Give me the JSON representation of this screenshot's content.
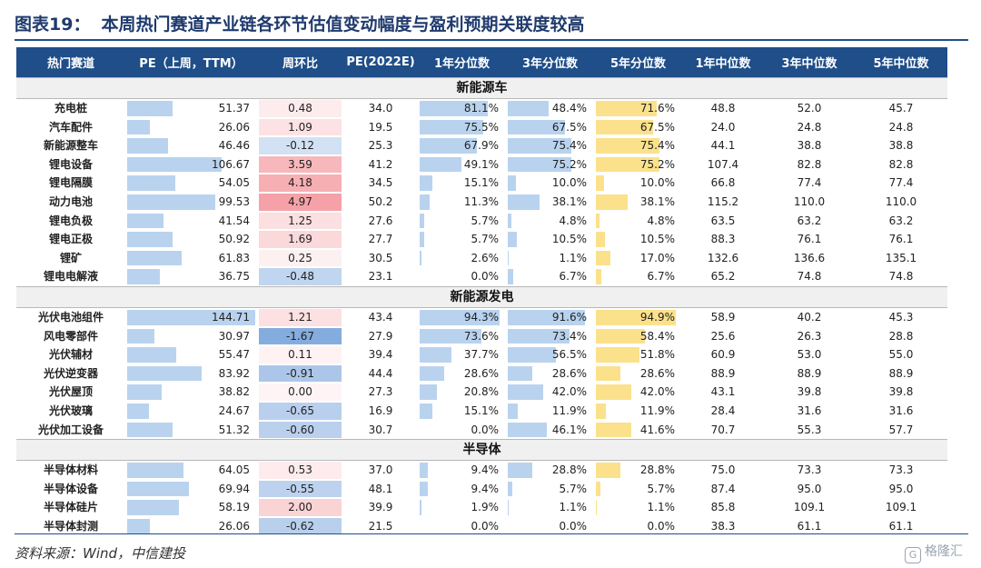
{
  "title": {
    "num": "图表19：",
    "text": "本周热门赛道产业链各环节估值变动幅度与盈利预期关联度较高"
  },
  "colors": {
    "header_bg": "#1f4e89",
    "bar_blue": "#b9d3ef",
    "bar_yellow": "#fbe18b",
    "pos": "#f5a6ab",
    "neg": "#8cb3e2"
  },
  "headers": [
    "热门赛道",
    "PE（上周，TTM）",
    "周环比",
    "PE(2022E)",
    "1年分位数",
    "3年分位数",
    "5年分位数",
    "1年中位数",
    "3年中位数",
    "5年中位数"
  ],
  "sections": [
    {
      "name": "新能源车",
      "rows": [
        {
          "name": "充电桩",
          "pe": "51.37",
          "chg": "0.48",
          "pe22": "34.0",
          "p1": "81.1%",
          "p3": "48.4%",
          "p5": "71.6%",
          "m1": "48.8",
          "m3": "52.0",
          "m5": "45.7"
        },
        {
          "name": "汽车配件",
          "pe": "26.06",
          "chg": "1.09",
          "pe22": "19.5",
          "p1": "75.5%",
          "p3": "67.5%",
          "p5": "67.5%",
          "m1": "24.0",
          "m3": "24.8",
          "m5": "24.8"
        },
        {
          "name": "新能源整车",
          "pe": "46.46",
          "chg": "-0.12",
          "pe22": "25.3",
          "p1": "67.9%",
          "p3": "75.4%",
          "p5": "75.4%",
          "m1": "44.1",
          "m3": "38.8",
          "m5": "38.8"
        },
        {
          "name": "锂电设备",
          "pe": "106.67",
          "chg": "3.59",
          "pe22": "41.2",
          "p1": "49.1%",
          "p3": "75.2%",
          "p5": "75.2%",
          "m1": "107.4",
          "m3": "82.8",
          "m5": "82.8"
        },
        {
          "name": "锂电隔膜",
          "pe": "54.05",
          "chg": "4.18",
          "pe22": "34.5",
          "p1": "15.1%",
          "p3": "10.0%",
          "p5": "10.0%",
          "m1": "66.8",
          "m3": "77.4",
          "m5": "77.4"
        },
        {
          "name": "动力电池",
          "pe": "99.53",
          "chg": "4.97",
          "pe22": "50.2",
          "p1": "11.3%",
          "p3": "38.1%",
          "p5": "38.1%",
          "m1": "115.2",
          "m3": "110.0",
          "m5": "110.0"
        },
        {
          "name": "锂电负极",
          "pe": "41.54",
          "chg": "1.25",
          "pe22": "27.6",
          "p1": "5.7%",
          "p3": "4.8%",
          "p5": "4.8%",
          "m1": "63.5",
          "m3": "63.2",
          "m5": "63.2"
        },
        {
          "name": "锂电正极",
          "pe": "50.92",
          "chg": "1.69",
          "pe22": "27.7",
          "p1": "5.7%",
          "p3": "10.5%",
          "p5": "10.5%",
          "m1": "88.3",
          "m3": "76.1",
          "m5": "76.1"
        },
        {
          "name": "锂矿",
          "pe": "61.83",
          "chg": "0.25",
          "pe22": "30.5",
          "p1": "2.6%",
          "p3": "1.1%",
          "p5": "17.0%",
          "m1": "132.6",
          "m3": "136.6",
          "m5": "135.1"
        },
        {
          "name": "锂电电解液",
          "pe": "36.75",
          "chg": "-0.48",
          "pe22": "23.1",
          "p1": "0.0%",
          "p3": "6.7%",
          "p5": "6.7%",
          "m1": "65.2",
          "m3": "74.8",
          "m5": "74.8"
        }
      ]
    },
    {
      "name": "新能源发电",
      "rows": [
        {
          "name": "光伏电池组件",
          "pe": "144.71",
          "chg": "1.21",
          "pe22": "43.4",
          "p1": "94.3%",
          "p3": "91.6%",
          "p5": "94.9%",
          "m1": "58.9",
          "m3": "40.2",
          "m5": "45.3"
        },
        {
          "name": "风电零部件",
          "pe": "30.97",
          "chg": "-1.67",
          "pe22": "27.9",
          "p1": "73.6%",
          "p3": "73.4%",
          "p5": "58.4%",
          "m1": "25.6",
          "m3": "26.3",
          "m5": "28.8"
        },
        {
          "name": "光伏辅材",
          "pe": "55.47",
          "chg": "0.11",
          "pe22": "39.4",
          "p1": "37.7%",
          "p3": "56.5%",
          "p5": "51.8%",
          "m1": "60.9",
          "m3": "53.0",
          "m5": "55.0"
        },
        {
          "name": "光伏逆变器",
          "pe": "83.92",
          "chg": "-0.91",
          "pe22": "44.4",
          "p1": "28.6%",
          "p3": "28.6%",
          "p5": "28.6%",
          "m1": "88.9",
          "m3": "88.9",
          "m5": "88.9"
        },
        {
          "name": "光伏屋顶",
          "pe": "38.82",
          "chg": "0.00",
          "pe22": "27.3",
          "p1": "20.8%",
          "p3": "42.0%",
          "p5": "42.0%",
          "m1": "43.1",
          "m3": "39.8",
          "m5": "39.8"
        },
        {
          "name": "光伏玻璃",
          "pe": "24.67",
          "chg": "-0.65",
          "pe22": "16.9",
          "p1": "15.1%",
          "p3": "11.9%",
          "p5": "11.9%",
          "m1": "28.4",
          "m3": "31.6",
          "m5": "31.6"
        },
        {
          "name": "光伏加工设备",
          "pe": "51.32",
          "chg": "-0.60",
          "pe22": "30.7",
          "p1": "0.0%",
          "p3": "46.1%",
          "p5": "41.6%",
          "m1": "70.7",
          "m3": "55.3",
          "m5": "57.7"
        }
      ]
    },
    {
      "name": "半导体",
      "rows": [
        {
          "name": "半导体材料",
          "pe": "64.05",
          "chg": "0.53",
          "pe22": "37.0",
          "p1": "9.4%",
          "p3": "28.8%",
          "p5": "28.8%",
          "m1": "75.0",
          "m3": "73.3",
          "m5": "73.3"
        },
        {
          "name": "半导体设备",
          "pe": "69.94",
          "chg": "-0.55",
          "pe22": "48.1",
          "p1": "9.4%",
          "p3": "5.7%",
          "p5": "5.7%",
          "m1": "87.4",
          "m3": "95.0",
          "m5": "95.0"
        },
        {
          "name": "半导体硅片",
          "pe": "58.19",
          "chg": "2.00",
          "pe22": "39.9",
          "p1": "1.9%",
          "p3": "1.1%",
          "p5": "1.1%",
          "m1": "85.8",
          "m3": "109.1",
          "m5": "109.1"
        },
        {
          "name": "半导体封测",
          "pe": "26.06",
          "chg": "-0.62",
          "pe22": "21.5",
          "p1": "0.0%",
          "p3": "0.0%",
          "p5": "0.0%",
          "m1": "38.3",
          "m3": "61.1",
          "m5": "61.1"
        }
      ]
    }
  ],
  "source": "资料来源：Wind，中信建投",
  "watermark": "格隆汇"
}
